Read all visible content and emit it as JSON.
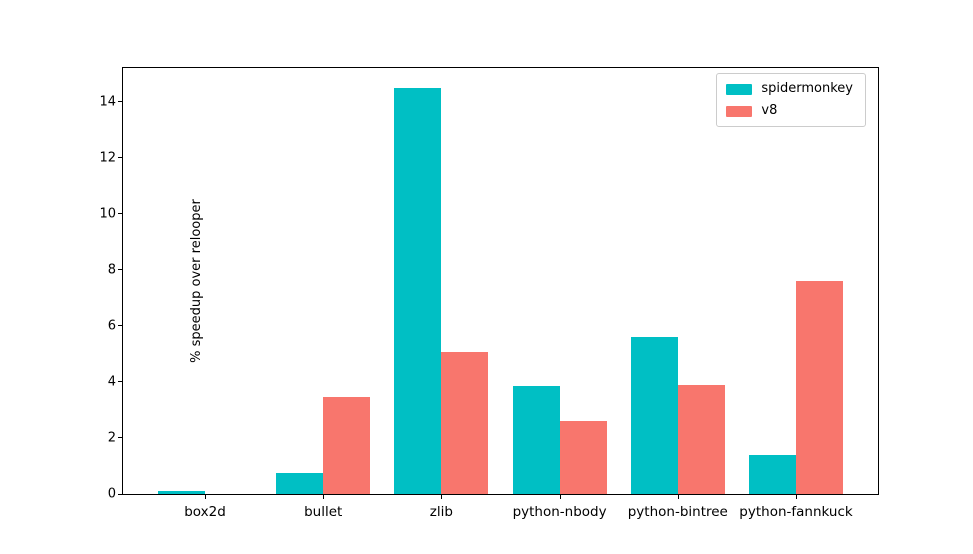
{
  "chart_data": {
    "type": "bar",
    "categories": [
      "box2d",
      "bullet",
      "zlib",
      "python-nbody",
      "python-bintree",
      "python-fannkuck"
    ],
    "series": [
      {
        "name": "spidermonkey",
        "color": "#00bfc4",
        "values": [
          0.1,
          0.75,
          14.5,
          3.85,
          5.6,
          1.4
        ]
      },
      {
        "name": "v8",
        "color": "#f8766d",
        "values": [
          0.0,
          3.45,
          5.05,
          2.6,
          3.9,
          7.6
        ]
      }
    ],
    "title": "",
    "xlabel": "",
    "ylabel": "% speedup over relooper",
    "ylim": [
      0,
      15.2
    ],
    "yticks": [
      0,
      2,
      4,
      6,
      8,
      10,
      12,
      14
    ],
    "grid": false,
    "legend_position": "upper right"
  }
}
